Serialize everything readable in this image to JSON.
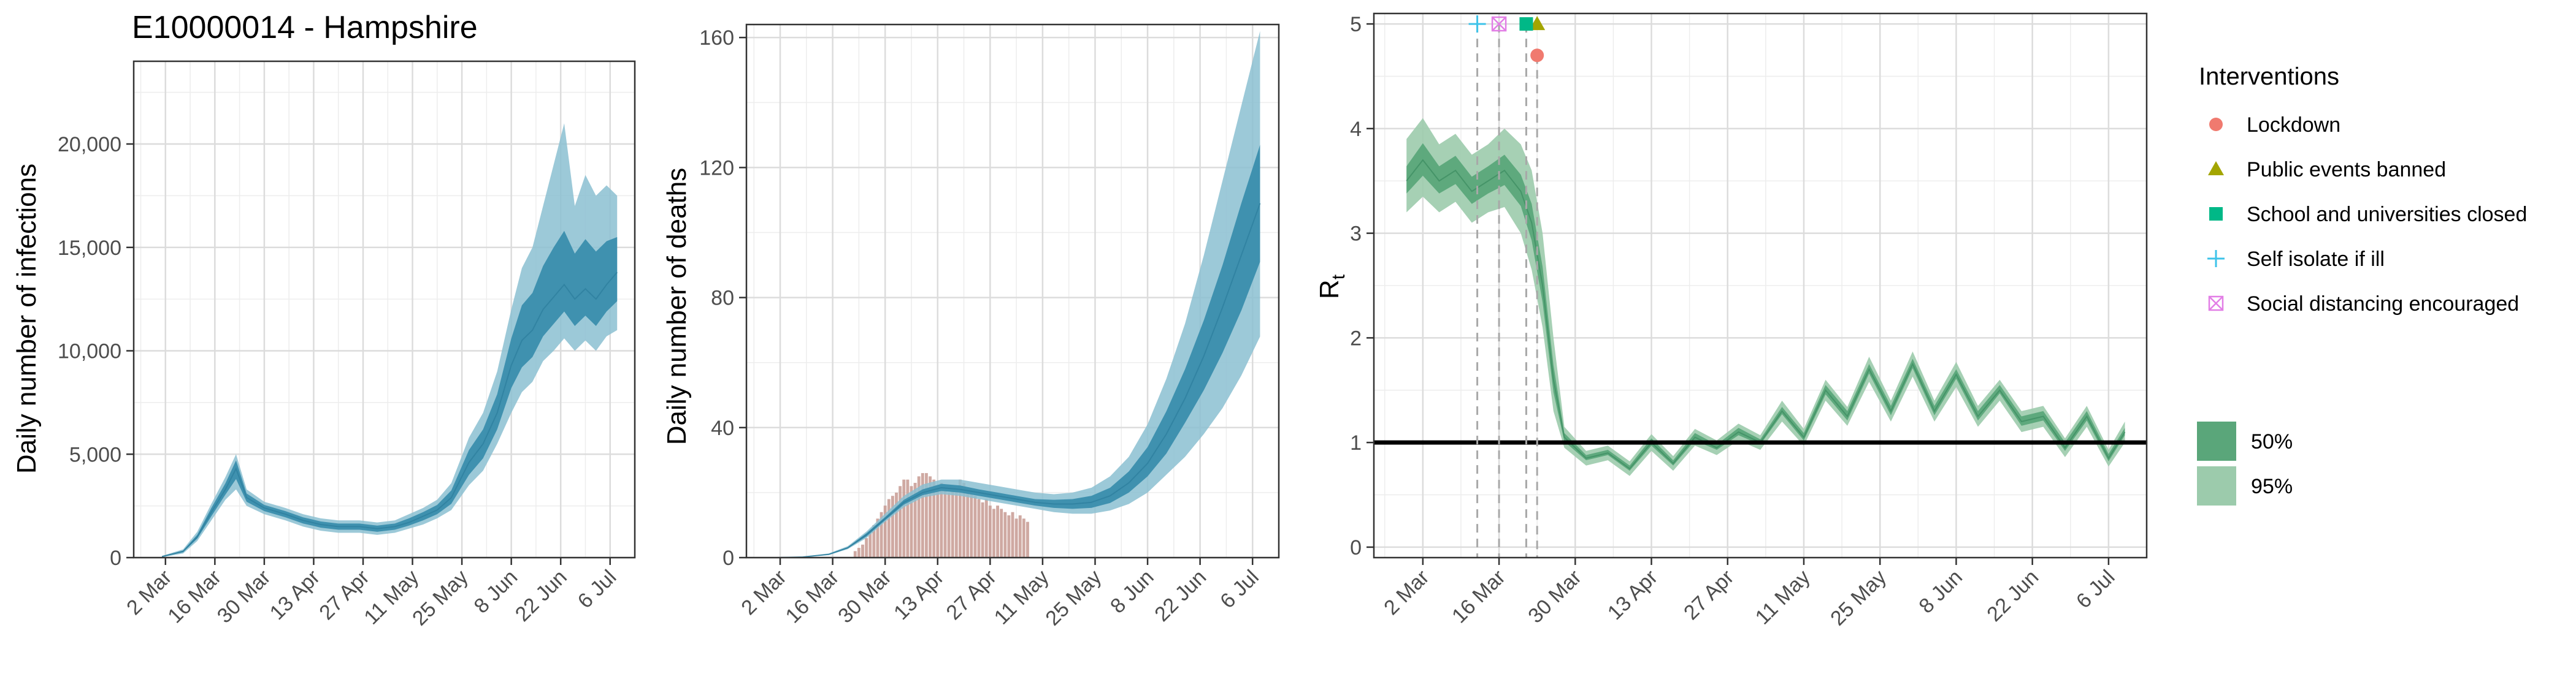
{
  "chart_data": [
    {
      "type": "area",
      "title": "E10000014 - Hampshire",
      "xlabel": "",
      "ylabel": "Daily number of infections",
      "xlim": [
        "2020-02-22",
        "2020-07-13"
      ],
      "ylim": [
        0,
        24000
      ],
      "x_ticks": [
        "2020-03-02",
        "2020-03-16",
        "2020-03-30",
        "2020-04-13",
        "2020-04-27",
        "2020-05-11",
        "2020-05-25",
        "2020-06-08",
        "2020-06-22",
        "2020-07-06"
      ],
      "x_tick_labels": [
        "2 Mar",
        "16 Mar",
        "30 Mar",
        "13 Apr",
        "27 Apr",
        "11 May",
        "25 May",
        "8 Jun",
        "22 Jun",
        "6 Jul"
      ],
      "y_ticks": [
        0,
        5000,
        10000,
        15000,
        20000
      ],
      "y_tick_labels": [
        "0",
        "5,000",
        "10,000",
        "15,000",
        "20,000"
      ],
      "grid": true,
      "colors": {
        "band95": "#8bbfd1",
        "band50": "#3a8ead"
      },
      "x": [
        "2020-03-01",
        "2020-03-07",
        "2020-03-11",
        "2020-03-15",
        "2020-03-19",
        "2020-03-22",
        "2020-03-25",
        "2020-03-30",
        "2020-04-05",
        "2020-04-10",
        "2020-04-15",
        "2020-04-20",
        "2020-04-26",
        "2020-05-01",
        "2020-05-06",
        "2020-05-10",
        "2020-05-14",
        "2020-05-18",
        "2020-05-22",
        "2020-05-27",
        "2020-05-31",
        "2020-06-04",
        "2020-06-08",
        "2020-06-11",
        "2020-06-14",
        "2020-06-17",
        "2020-06-20",
        "2020-06-23",
        "2020-06-26",
        "2020-06-29",
        "2020-07-02",
        "2020-07-05",
        "2020-07-08"
      ],
      "series": [
        {
          "values": [
            50,
            300,
            1000,
            2200,
            3300,
            4300,
            2900,
            2400,
            2100,
            1800,
            1600,
            1500,
            1500,
            1400,
            1500,
            1700,
            2000,
            2300,
            2900,
            4600,
            5500,
            7000,
            9300,
            10500,
            11000,
            12000,
            12600,
            13200,
            12500,
            13000,
            12500,
            13200,
            13800
          ]
        },
        {
          "values": [
            20,
            200,
            800,
            1800,
            2800,
            3300,
            2500,
            2100,
            1800,
            1500,
            1300,
            1200,
            1200,
            1100,
            1200,
            1400,
            1600,
            1900,
            2300,
            3500,
            4200,
            5500,
            7000,
            8000,
            8500,
            9500,
            10000,
            10600,
            10000,
            10500,
            10000,
            10700,
            11000
          ]
        },
        {
          "values": [
            80,
            400,
            1250,
            2600,
            3900,
            5000,
            3300,
            2700,
            2400,
            2100,
            1900,
            1800,
            1800,
            1700,
            1800,
            2100,
            2400,
            2800,
            3600,
            5800,
            7000,
            9000,
            12000,
            14000,
            15000,
            17000,
            19000,
            21000,
            17000,
            18500,
            17500,
            18000,
            17500
          ]
        },
        {
          "values": [
            35,
            260,
            920,
            2000,
            3050,
            3800,
            2700,
            2250,
            1950,
            1650,
            1450,
            1350,
            1350,
            1250,
            1350,
            1550,
            1800,
            2100,
            2600,
            4000,
            4800,
            6200,
            8200,
            9200,
            9700,
            10700,
            11300,
            11900,
            11200,
            11700,
            11200,
            11900,
            12400
          ]
        },
        {
          "values": [
            65,
            340,
            1100,
            2400,
            3600,
            4700,
            3100,
            2550,
            2250,
            1950,
            1750,
            1650,
            1650,
            1550,
            1650,
            1900,
            2200,
            2550,
            3250,
            5200,
            6200,
            7900,
            10600,
            12200,
            12800,
            14100,
            15000,
            15800,
            14700,
            15400,
            14800,
            15300,
            15500
          ]
        }
      ]
    },
    {
      "type": "bar",
      "xlabel": "",
      "ylabel": "Daily number of deaths",
      "xlim": [
        "2020-02-22",
        "2020-07-13"
      ],
      "ylim": [
        0,
        164
      ],
      "x_ticks": [
        "2020-03-02",
        "2020-03-16",
        "2020-03-30",
        "2020-04-13",
        "2020-04-27",
        "2020-05-11",
        "2020-05-25",
        "2020-06-08",
        "2020-06-22",
        "2020-07-06"
      ],
      "x_tick_labels": [
        "2 Mar",
        "16 Mar",
        "30 Mar",
        "13 Apr",
        "27 Apr",
        "11 May",
        "25 May",
        "8 Jun",
        "22 Jun",
        "6 Jul"
      ],
      "y_ticks": [
        0,
        40,
        80,
        120,
        160
      ],
      "y_tick_labels": [
        "0",
        "40",
        "80",
        "120",
        "160"
      ],
      "grid": true,
      "colors": {
        "bars": "#c79a92",
        "band95": "#8bbfd1",
        "band50": "#3a8ead"
      },
      "bars": {
        "start": "2020-03-22",
        "values": [
          2,
          3,
          4,
          6,
          8,
          10,
          12,
          14,
          16,
          18,
          19,
          20,
          22,
          24,
          24,
          22,
          23,
          25,
          26,
          26,
          25,
          24,
          22,
          23,
          22,
          20,
          21,
          22,
          24,
          23,
          21,
          20,
          19,
          18,
          17,
          18,
          16,
          15,
          16,
          15,
          14,
          13,
          14,
          12,
          13,
          12,
          11
        ]
      },
      "x": [
        "2020-03-01",
        "2020-03-08",
        "2020-03-15",
        "2020-03-20",
        "2020-03-25",
        "2020-03-30",
        "2020-04-04",
        "2020-04-09",
        "2020-04-14",
        "2020-04-19",
        "2020-04-24",
        "2020-04-29",
        "2020-05-04",
        "2020-05-09",
        "2020-05-14",
        "2020-05-19",
        "2020-05-24",
        "2020-05-29",
        "2020-06-03",
        "2020-06-08",
        "2020-06-13",
        "2020-06-18",
        "2020-06-23",
        "2020-06-28",
        "2020-07-03",
        "2020-07-08"
      ],
      "series": [
        {
          "values": [
            0,
            0.2,
            1,
            3,
            7,
            12,
            17,
            20,
            21.5,
            21,
            20,
            19,
            18,
            17,
            16.5,
            16.5,
            17,
            19,
            23,
            29,
            38,
            49,
            62,
            77,
            93,
            109
          ]
        },
        {
          "values": [
            0,
            0.1,
            0.8,
            2.6,
            6,
            11,
            15.5,
            18.5,
            19.5,
            19,
            18,
            17,
            16,
            15,
            14,
            13.5,
            13.5,
            14.5,
            16.5,
            20,
            25.5,
            31,
            38,
            46,
            56,
            68
          ]
        },
        {
          "values": [
            0,
            0.3,
            1.3,
            3.5,
            8,
            13.5,
            19,
            22.5,
            24,
            24,
            23,
            22,
            21,
            20,
            19.5,
            20,
            21.5,
            25,
            31,
            41,
            55,
            72,
            93,
            116,
            139,
            162
          ]
        },
        {
          "values": [
            0,
            0.15,
            0.9,
            2.8,
            6.5,
            11.5,
            16.3,
            19.2,
            20.5,
            20,
            19,
            18,
            17,
            16,
            15.3,
            15,
            15.3,
            16.8,
            20,
            25,
            32,
            41.5,
            51.5,
            63,
            76,
            91
          ]
        },
        {
          "values": [
            0,
            0.25,
            1.1,
            3.2,
            7.5,
            12.5,
            17.8,
            21,
            22.7,
            22.2,
            21,
            20,
            19,
            18,
            17.8,
            18,
            19,
            21.5,
            26.5,
            34,
            45,
            58,
            73,
            90,
            109,
            127
          ]
        }
      ]
    },
    {
      "type": "area",
      "xlabel": "",
      "ylabel": "R",
      "ylabel_subscript": "t",
      "xlim": [
        "2020-02-22",
        "2020-07-13"
      ],
      "ylim": [
        -0.1,
        5.1
      ],
      "x_ticks": [
        "2020-03-02",
        "2020-03-16",
        "2020-03-30",
        "2020-04-13",
        "2020-04-27",
        "2020-05-11",
        "2020-05-25",
        "2020-06-08",
        "2020-06-22",
        "2020-07-06"
      ],
      "x_tick_labels": [
        "2 Mar",
        "16 Mar",
        "30 Mar",
        "13 Apr",
        "27 Apr",
        "11 May",
        "25 May",
        "8 Jun",
        "22 Jun",
        "6 Jul"
      ],
      "y_ticks": [
        0,
        1,
        2,
        3,
        4,
        5
      ],
      "y_tick_labels": [
        "0",
        "1",
        "2",
        "3",
        "4",
        "5"
      ],
      "grid": true,
      "reference_line": 1,
      "colors": {
        "band50": "#5aa67a",
        "band95": "#9ccbac",
        "line": "#000000"
      },
      "x": [
        "2020-02-28",
        "2020-03-02",
        "2020-03-05",
        "2020-03-08",
        "2020-03-11",
        "2020-03-14",
        "2020-03-17",
        "2020-03-20",
        "2020-03-22",
        "2020-03-24",
        "2020-03-26",
        "2020-03-28",
        "2020-04-01",
        "2020-04-05",
        "2020-04-09",
        "2020-04-13",
        "2020-04-17",
        "2020-04-21",
        "2020-04-25",
        "2020-04-29",
        "2020-05-03",
        "2020-05-07",
        "2020-05-11",
        "2020-05-15",
        "2020-05-19",
        "2020-05-23",
        "2020-05-27",
        "2020-05-31",
        "2020-06-04",
        "2020-06-08",
        "2020-06-12",
        "2020-06-16",
        "2020-06-20",
        "2020-06-24",
        "2020-06-28",
        "2020-07-02",
        "2020-07-06",
        "2020-07-09"
      ],
      "series": [
        {
          "values": [
            3.5,
            3.7,
            3.5,
            3.6,
            3.4,
            3.5,
            3.6,
            3.4,
            3.1,
            2.5,
            1.6,
            1.05,
            0.85,
            0.9,
            0.75,
            1.0,
            0.8,
            1.05,
            0.95,
            1.1,
            1.0,
            1.3,
            1.05,
            1.5,
            1.25,
            1.7,
            1.3,
            1.75,
            1.3,
            1.65,
            1.25,
            1.5,
            1.2,
            1.25,
            0.95,
            1.25,
            0.85,
            1.1
          ]
        },
        {
          "values": [
            3.2,
            3.35,
            3.2,
            3.3,
            3.1,
            3.2,
            3.25,
            3.0,
            2.65,
            2.1,
            1.3,
            0.95,
            0.78,
            0.83,
            0.68,
            0.92,
            0.73,
            0.97,
            0.88,
            1.02,
            0.93,
            1.2,
            0.97,
            1.4,
            1.16,
            1.58,
            1.2,
            1.63,
            1.2,
            1.53,
            1.15,
            1.4,
            1.1,
            1.15,
            0.86,
            1.15,
            0.77,
            1.0
          ]
        },
        {
          "values": [
            3.9,
            4.1,
            3.85,
            3.95,
            3.75,
            3.85,
            4.0,
            3.85,
            3.6,
            3.0,
            2.0,
            1.15,
            0.92,
            0.97,
            0.82,
            1.08,
            0.87,
            1.13,
            1.02,
            1.18,
            1.07,
            1.4,
            1.13,
            1.6,
            1.34,
            1.82,
            1.4,
            1.87,
            1.4,
            1.77,
            1.35,
            1.6,
            1.3,
            1.35,
            1.04,
            1.35,
            0.93,
            1.2
          ]
        },
        {
          "values": [
            3.38,
            3.55,
            3.38,
            3.47,
            3.28,
            3.38,
            3.46,
            3.26,
            2.93,
            2.34,
            1.48,
            1.01,
            0.83,
            0.88,
            0.73,
            0.97,
            0.78,
            1.02,
            0.93,
            1.07,
            0.98,
            1.27,
            1.02,
            1.46,
            1.21,
            1.66,
            1.26,
            1.71,
            1.26,
            1.61,
            1.21,
            1.47,
            1.16,
            1.21,
            0.92,
            1.21,
            0.82,
            1.07
          ]
        },
        {
          "values": [
            3.64,
            3.86,
            3.64,
            3.74,
            3.54,
            3.64,
            3.75,
            3.56,
            3.28,
            2.68,
            1.74,
            1.09,
            0.88,
            0.93,
            0.78,
            1.04,
            0.83,
            1.09,
            0.98,
            1.14,
            1.03,
            1.34,
            1.09,
            1.55,
            1.3,
            1.75,
            1.35,
            1.8,
            1.35,
            1.7,
            1.3,
            1.55,
            1.25,
            1.3,
            1.0,
            1.3,
            0.89,
            1.14
          ]
        }
      ],
      "interventions": [
        {
          "label": "Lockdown",
          "date": "2020-03-23",
          "r_value": 4.7,
          "shape": "circle",
          "color": "#f07a6f"
        },
        {
          "label": "Public events banned",
          "date": "2020-03-23",
          "r_value": 5.0,
          "shape": "triangle",
          "color": "#a3a500"
        },
        {
          "label": "School and universities closed",
          "date": "2020-03-21",
          "r_value": 5.0,
          "shape": "square",
          "color": "#00b887"
        },
        {
          "label": "Self isolate if ill",
          "date": "2020-03-12",
          "r_value": 5.0,
          "shape": "plus",
          "color": "#3ec3e9"
        },
        {
          "label": "Social distancing encouraged",
          "date": "2020-03-16",
          "r_value": 5.0,
          "shape": "boxed-x",
          "color": "#e27ee6"
        }
      ],
      "legend_title": "Interventions",
      "legend_position": "right",
      "band_legend": [
        {
          "label": "50%",
          "color": "#5aa67a"
        },
        {
          "label": "95%",
          "color": "#9ccbac"
        }
      ]
    }
  ]
}
